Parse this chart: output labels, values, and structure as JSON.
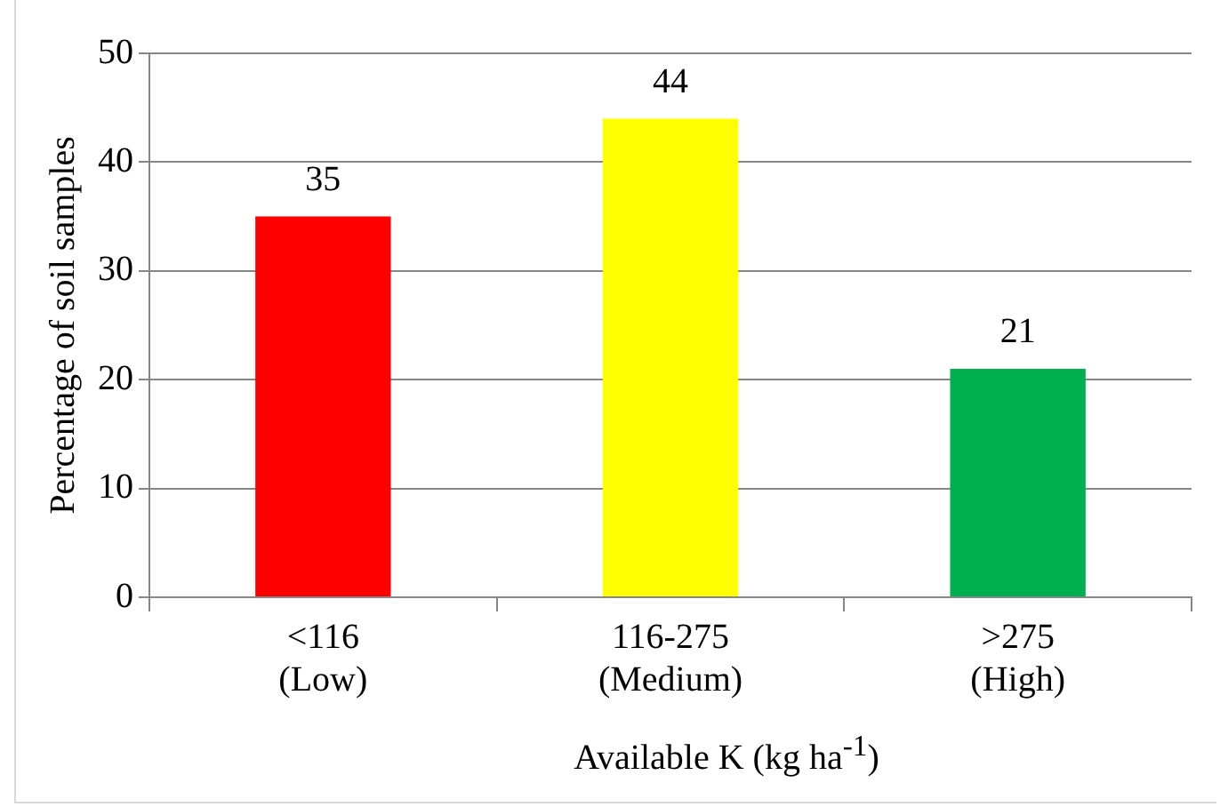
{
  "chart_data": {
    "type": "bar",
    "categories": [
      "<116\n(Low)",
      "116-275\n(Medium)",
      ">275\n(High)"
    ],
    "values": [
      35,
      44,
      21
    ],
    "colors": [
      "#ff0000",
      "#ffff00",
      "#00b050"
    ],
    "ylim": [
      0,
      50
    ],
    "yticks": [
      0,
      10,
      20,
      30,
      40,
      50
    ],
    "ylabel": "Percentage of soil samples",
    "xlabel": "Available K (kg ha$^{-1}$)",
    "grid": "y",
    "data_labels": true,
    "legend": false
  }
}
